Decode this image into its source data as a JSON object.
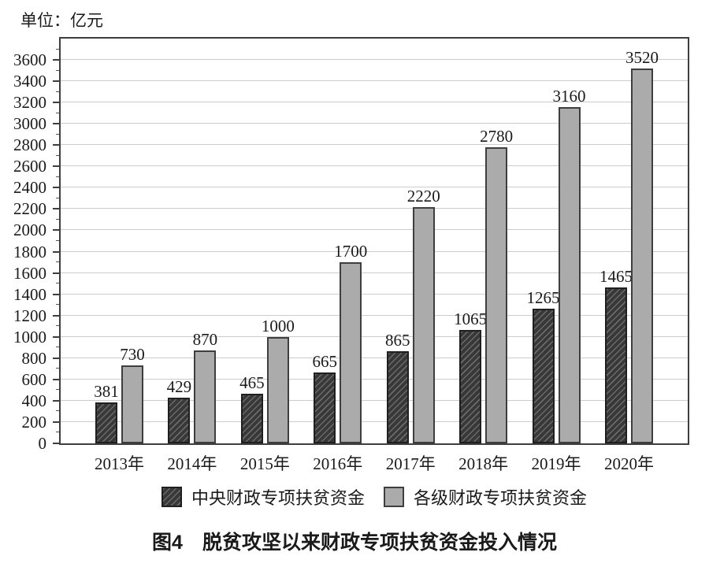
{
  "chart_data": {
    "type": "bar",
    "unit_label": "单位：亿元",
    "title": "图4　脱贫攻坚以来财政专项扶贫资金投入情况",
    "categories": [
      "2013年",
      "2014年",
      "2015年",
      "2016年",
      "2017年",
      "2018年",
      "2019年",
      "2020年"
    ],
    "series": [
      {
        "name": "中央财政专项扶贫资金",
        "style": "dark-hatched",
        "values": [
          381,
          429,
          465,
          665,
          865,
          1065,
          1265,
          1465
        ]
      },
      {
        "name": "各级财政专项扶贫资金",
        "style": "gray-solid",
        "values": [
          730,
          870,
          1000,
          1700,
          2220,
          2780,
          3160,
          3520
        ]
      }
    ],
    "y_axis": {
      "min": 0,
      "max": 3800,
      "tick_step": 200,
      "minor_step": 100,
      "tick_max_label": 3600
    },
    "grid": true,
    "legend_position": "bottom",
    "colors": {
      "dark_fill": "#383838",
      "dark_hatch": "#6a6a6a",
      "gray_fill": "#ababab",
      "frame_border": "#3e3e3e",
      "gridline": "#cccccc"
    }
  }
}
